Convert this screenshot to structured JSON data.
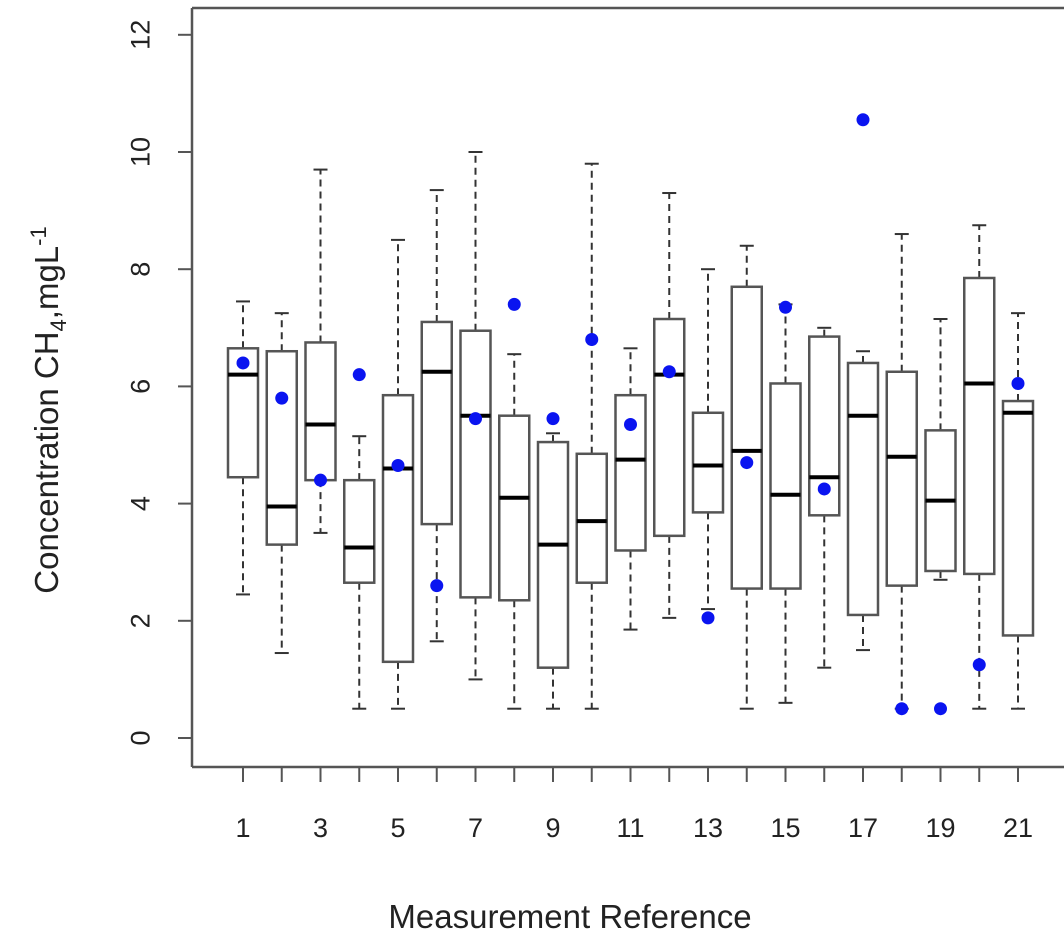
{
  "chart_data": {
    "type": "boxplot",
    "title": "",
    "xlabel": "Measurement Reference",
    "ylabel": {
      "main": "Concentration CH",
      "subscript": "4",
      "unit": ",mgL",
      "superscript": "-1"
    },
    "ylim": [
      0,
      12
    ],
    "yticks": [
      0,
      2,
      4,
      6,
      8,
      10,
      12
    ],
    "xticks": [
      1,
      3,
      5,
      7,
      9,
      11,
      13,
      15,
      17,
      19,
      21
    ],
    "grid": false,
    "colors": {
      "box": "#555555",
      "median": "#000000",
      "whisker": "#333333",
      "point": "#0a14f0"
    },
    "boxes": [
      {
        "x": 1,
        "min": 2.45,
        "q1": 4.45,
        "median": 6.2,
        "q3": 6.65,
        "max": 7.45
      },
      {
        "x": 2,
        "min": 1.45,
        "q1": 3.3,
        "median": 3.95,
        "q3": 6.6,
        "max": 7.25
      },
      {
        "x": 3,
        "min": 3.5,
        "q1": 4.4,
        "median": 5.35,
        "q3": 6.75,
        "max": 9.7
      },
      {
        "x": 4,
        "min": 0.5,
        "q1": 2.65,
        "median": 3.25,
        "q3": 4.4,
        "max": 5.15
      },
      {
        "x": 5,
        "min": 0.5,
        "q1": 1.3,
        "median": 4.6,
        "q3": 5.85,
        "max": 8.5
      },
      {
        "x": 6,
        "min": 1.65,
        "q1": 3.65,
        "median": 6.25,
        "q3": 7.1,
        "max": 9.35
      },
      {
        "x": 7,
        "min": 1.0,
        "q1": 2.4,
        "median": 5.5,
        "q3": 6.95,
        "max": 10.0
      },
      {
        "x": 8,
        "min": 0.5,
        "q1": 2.35,
        "median": 4.1,
        "q3": 5.5,
        "max": 6.55
      },
      {
        "x": 9,
        "min": 0.5,
        "q1": 1.2,
        "median": 3.3,
        "q3": 5.05,
        "max": 5.2
      },
      {
        "x": 10,
        "min": 0.5,
        "q1": 2.65,
        "median": 3.7,
        "q3": 4.85,
        "max": 9.8
      },
      {
        "x": 11,
        "min": 1.85,
        "q1": 3.2,
        "median": 4.75,
        "q3": 5.85,
        "max": 6.65
      },
      {
        "x": 12,
        "min": 2.05,
        "q1": 3.45,
        "median": 6.2,
        "q3": 7.15,
        "max": 9.3
      },
      {
        "x": 13,
        "min": 2.2,
        "q1": 3.85,
        "median": 4.65,
        "q3": 5.55,
        "max": 8.0
      },
      {
        "x": 14,
        "min": 0.5,
        "q1": 2.55,
        "median": 4.9,
        "q3": 7.7,
        "max": 8.4
      },
      {
        "x": 15,
        "min": 0.6,
        "q1": 2.55,
        "median": 4.15,
        "q3": 6.05,
        "max": 7.4
      },
      {
        "x": 16,
        "min": 1.2,
        "q1": 3.8,
        "median": 4.45,
        "q3": 6.85,
        "max": 7.0
      },
      {
        "x": 17,
        "min": 1.5,
        "q1": 2.1,
        "median": 5.5,
        "q3": 6.4,
        "max": 6.6
      },
      {
        "x": 18,
        "min": 0.5,
        "q1": 2.6,
        "median": 4.8,
        "q3": 6.25,
        "max": 8.6
      },
      {
        "x": 19,
        "min": 2.7,
        "q1": 2.85,
        "median": 4.05,
        "q3": 5.25,
        "max": 7.15
      },
      {
        "x": 20,
        "min": 0.5,
        "q1": 2.8,
        "median": 6.05,
        "q3": 7.85,
        "max": 8.75
      },
      {
        "x": 21,
        "min": 0.5,
        "q1": 1.75,
        "median": 5.55,
        "q3": 5.75,
        "max": 7.25
      }
    ],
    "points": [
      {
        "x": 1,
        "y": 6.4
      },
      {
        "x": 2,
        "y": 5.8
      },
      {
        "x": 3,
        "y": 4.4
      },
      {
        "x": 4,
        "y": 6.2
      },
      {
        "x": 5,
        "y": 4.65
      },
      {
        "x": 6,
        "y": 2.6
      },
      {
        "x": 7,
        "y": 5.45
      },
      {
        "x": 8,
        "y": 7.4
      },
      {
        "x": 9,
        "y": 5.45
      },
      {
        "x": 10,
        "y": 6.8
      },
      {
        "x": 11,
        "y": 5.35
      },
      {
        "x": 12,
        "y": 6.25
      },
      {
        "x": 13,
        "y": 2.05
      },
      {
        "x": 14,
        "y": 4.7
      },
      {
        "x": 15,
        "y": 7.35
      },
      {
        "x": 16,
        "y": 4.25
      },
      {
        "x": 17,
        "y": 10.55
      },
      {
        "x": 18,
        "y": 0.5
      },
      {
        "x": 19,
        "y": 0.5
      },
      {
        "x": 20,
        "y": 1.25
      },
      {
        "x": 21,
        "y": 6.05
      }
    ]
  }
}
